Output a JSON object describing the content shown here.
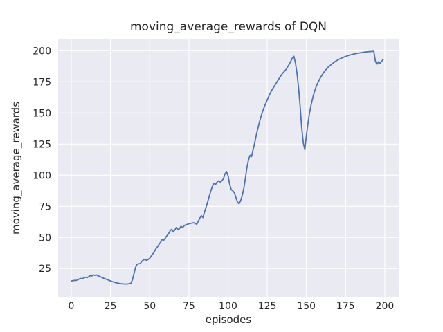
{
  "figure": {
    "background": "#ffffff"
  },
  "chart_data": {
    "type": "line",
    "title": "moving_average_rewards of DQN",
    "xlabel": "episodes",
    "ylabel": "moving_average_rewards",
    "x_ticks": [
      0,
      25,
      50,
      75,
      100,
      125,
      150,
      175,
      200
    ],
    "y_ticks": [
      25,
      50,
      75,
      100,
      125,
      150,
      175,
      200
    ],
    "xlim": [
      -8.4,
      209.3
    ],
    "ylim": [
      1.8,
      209.05
    ],
    "grid": true,
    "legend_position": "none",
    "axes_background": "#eaeaf2",
    "grid_color": "#ffffff",
    "text_color": "#262626",
    "series": [
      {
        "name": "DQN moving average reward",
        "color": "#4c72b0",
        "x_start": 0,
        "x_step": 1,
        "values": [
          15,
          15.3,
          15.6,
          15.4,
          16,
          16.6,
          17.1,
          16.7,
          17.6,
          18.1,
          17.7,
          18.4,
          19.3,
          19,
          19.9,
          19.6,
          19.9,
          19.2,
          18.7,
          18.2,
          17.6,
          17.1,
          16.6,
          16.1,
          15.6,
          15.1,
          14.6,
          14.2,
          13.8,
          13.5,
          13.2,
          13,
          12.8,
          12.7,
          12.6,
          12.6,
          12.7,
          12.8,
          13.2,
          16,
          21,
          26,
          28.5,
          28.8,
          29,
          30.8,
          31.9,
          32.4,
          31.6,
          32.3,
          33.3,
          35,
          36.8,
          38.5,
          41,
          42.5,
          44.5,
          46.2,
          48.5,
          47.8,
          49.5,
          51.5,
          52.8,
          55.3,
          56.5,
          54.5,
          56,
          58,
          56.5,
          57,
          59,
          57.8,
          59.5,
          60.1,
          60.5,
          61,
          61.3,
          61.5,
          61.8,
          61.3,
          60.5,
          63,
          65.5,
          67.5,
          66,
          70.5,
          74.5,
          78.5,
          83,
          87.5,
          91,
          93.5,
          92.5,
          94.5,
          95.5,
          94.5,
          95.5,
          97,
          101,
          103,
          99.5,
          93,
          88.5,
          87.5,
          86,
          82,
          78.5,
          77,
          79.5,
          83.5,
          89,
          97,
          106,
          112,
          116,
          115,
          120.5,
          126,
          132,
          137.5,
          142.5,
          147,
          151,
          154.5,
          157.5,
          160.5,
          163.5,
          166,
          168.5,
          170.5,
          172.5,
          174.5,
          176.5,
          178.5,
          180.5,
          182,
          183.5,
          185,
          187,
          189,
          191.5,
          194,
          195.5,
          190,
          182,
          170,
          155,
          138,
          126,
          120.5,
          132,
          142,
          150,
          156.5,
          162,
          166.5,
          170.5,
          173.5,
          176,
          178.5,
          180.5,
          182.5,
          184,
          185.5,
          187,
          188,
          189,
          190,
          191,
          191.8,
          192.5,
          193.2,
          193.8,
          194.4,
          194.9,
          195.4,
          195.8,
          196.2,
          196.6,
          196.9,
          197.2,
          197.5,
          197.8,
          198,
          198.2,
          198.4,
          198.6,
          198.8,
          199,
          199.1,
          199.2,
          199.3,
          199.4,
          199.5,
          191.5,
          189,
          191,
          190,
          191.5,
          193
        ]
      }
    ]
  }
}
